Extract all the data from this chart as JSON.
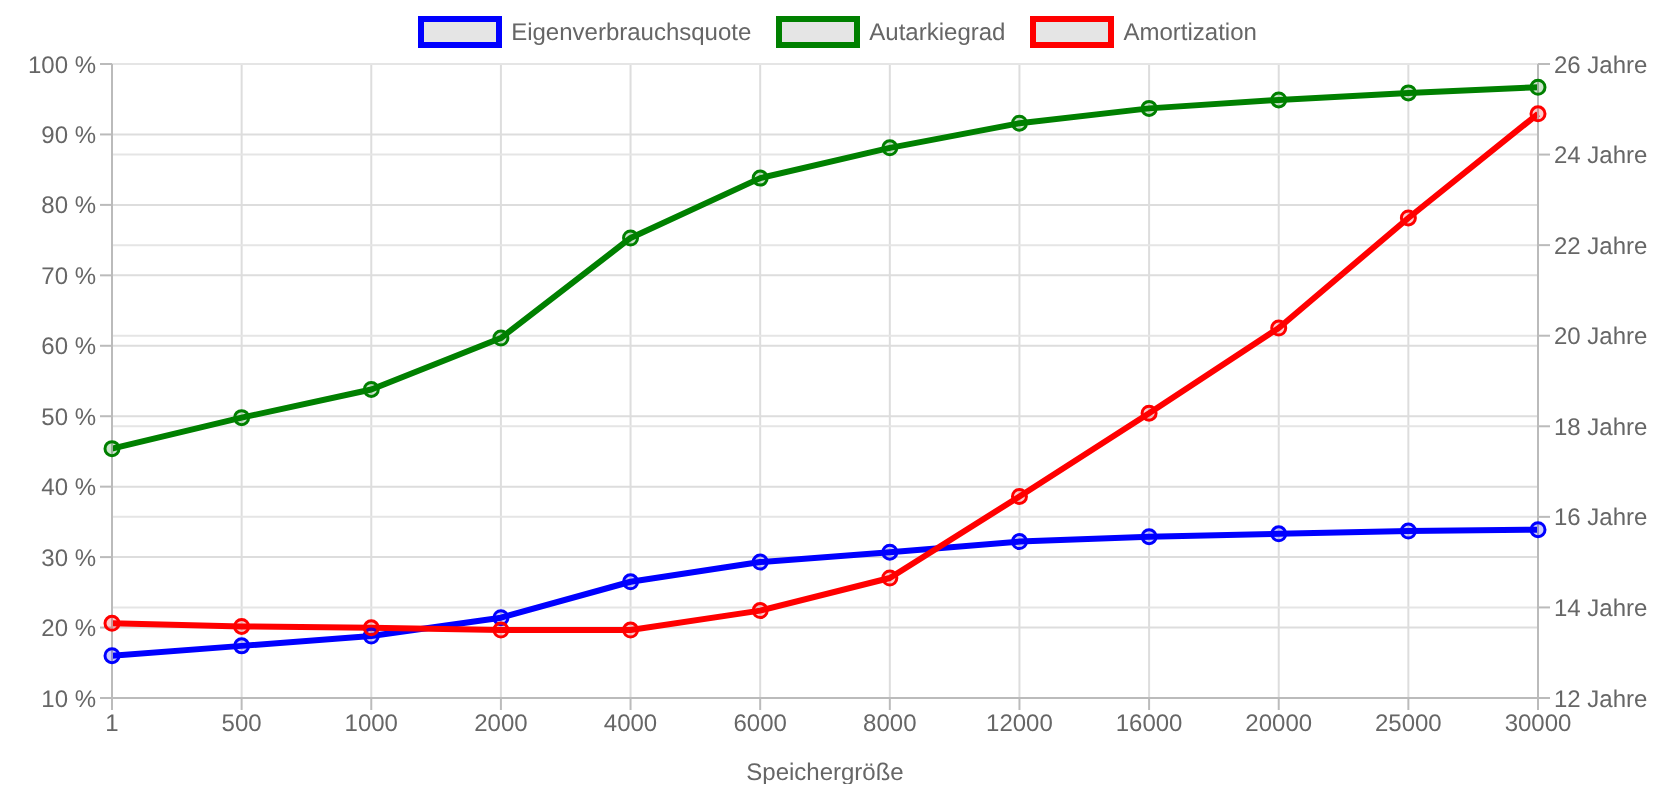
{
  "chart_data": {
    "type": "line",
    "xlabel": "Speichergröße",
    "categories": [
      "1",
      "500",
      "1000",
      "2000",
      "4000",
      "6000",
      "8000",
      "12000",
      "16000",
      "20000",
      "25000",
      "30000"
    ],
    "series": [
      {
        "name": "Eigenverbrauchsquote",
        "color": "#0000ff",
        "values": [
          16,
          17.4,
          18.8,
          21.4,
          26.5,
          29.3,
          30.7,
          32.2,
          32.9,
          33.3,
          33.7,
          33.9
        ]
      },
      {
        "name": "Autarkiegrad",
        "color": "#008000",
        "values": [
          45.4,
          49.8,
          53.8,
          61.1,
          75.3,
          83.8,
          88.1,
          91.6,
          93.7,
          94.9,
          95.9,
          96.7
        ]
      },
      {
        "name": "Amortization",
        "color": "#ff0000",
        "axis": "y2",
        "values": [
          13.65,
          13.58,
          13.55,
          13.5,
          13.5,
          13.93,
          14.65,
          16.45,
          18.29,
          20.17,
          22.6,
          24.9
        ]
      }
    ],
    "ylim": [
      10,
      100
    ],
    "yticks": [
      {
        "value": 10,
        "label": "10 %"
      },
      {
        "value": 20,
        "label": "20 %"
      },
      {
        "value": 30,
        "label": "30 %"
      },
      {
        "value": 40,
        "label": "40 %"
      },
      {
        "value": 50,
        "label": "50 %"
      },
      {
        "value": 60,
        "label": "60 %"
      },
      {
        "value": 70,
        "label": "70 %"
      },
      {
        "value": 80,
        "label": "80 %"
      },
      {
        "value": 90,
        "label": "90 %"
      },
      {
        "value": 100,
        "label": "100 %"
      }
    ],
    "y2lim": [
      12,
      26
    ],
    "y2ticks": [
      {
        "value": 12,
        "label": "12 Jahre"
      },
      {
        "value": 14,
        "label": "14 Jahre"
      },
      {
        "value": 16,
        "label": "16 Jahre"
      },
      {
        "value": 18,
        "label": "18 Jahre"
      },
      {
        "value": 20,
        "label": "20 Jahre"
      },
      {
        "value": 22,
        "label": "22 Jahre"
      },
      {
        "value": 24,
        "label": "24 Jahre"
      },
      {
        "value": 26,
        "label": "26 Jahre"
      }
    ],
    "grid": true,
    "legend": "top",
    "marker": "circle",
    "line_style": "solid"
  }
}
